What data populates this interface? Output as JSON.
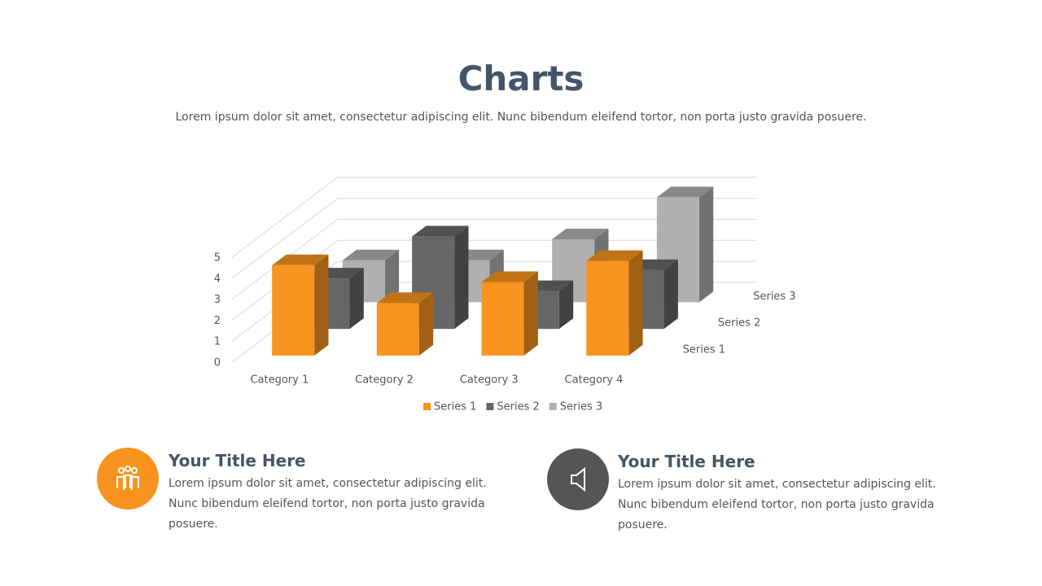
{
  "header": {
    "title": "Charts",
    "subtitle": "Lorem ipsum dolor sit amet, consectetur adipiscing elit. Nunc bibendum eleifend tortor, non porta justo gravida posuere."
  },
  "chart_data": {
    "type": "bar3d",
    "categories": [
      "Category 1",
      "Category 2",
      "Category 3",
      "Category 4"
    ],
    "series": [
      {
        "name": "Series 1",
        "color": "#f7931e",
        "values": [
          4.3,
          2.5,
          3.5,
          4.5
        ]
      },
      {
        "name": "Series 2",
        "color": "#666666",
        "values": [
          2.4,
          4.4,
          1.8,
          2.8
        ]
      },
      {
        "name": "Series 3",
        "color": "#b0b0b0",
        "values": [
          2,
          2,
          3,
          5
        ]
      }
    ],
    "ylim": [
      0,
      5
    ],
    "yticks": [
      0,
      1,
      2,
      3,
      4,
      5
    ],
    "grid": true,
    "legend": "bottom"
  },
  "features": [
    {
      "title": "Your Title Here",
      "text": "Lorem ipsum dolor sit amet, consectetur adipiscing elit. Nunc bibendum eleifend tortor, non porta justo gravida posuere."
    },
    {
      "title": "Your Title Here",
      "text": "Lorem ipsum dolor sit amet, consectetur adipiscing elit. Nunc bibendum eleifend tortor, non porta justo gravida posuere."
    }
  ]
}
